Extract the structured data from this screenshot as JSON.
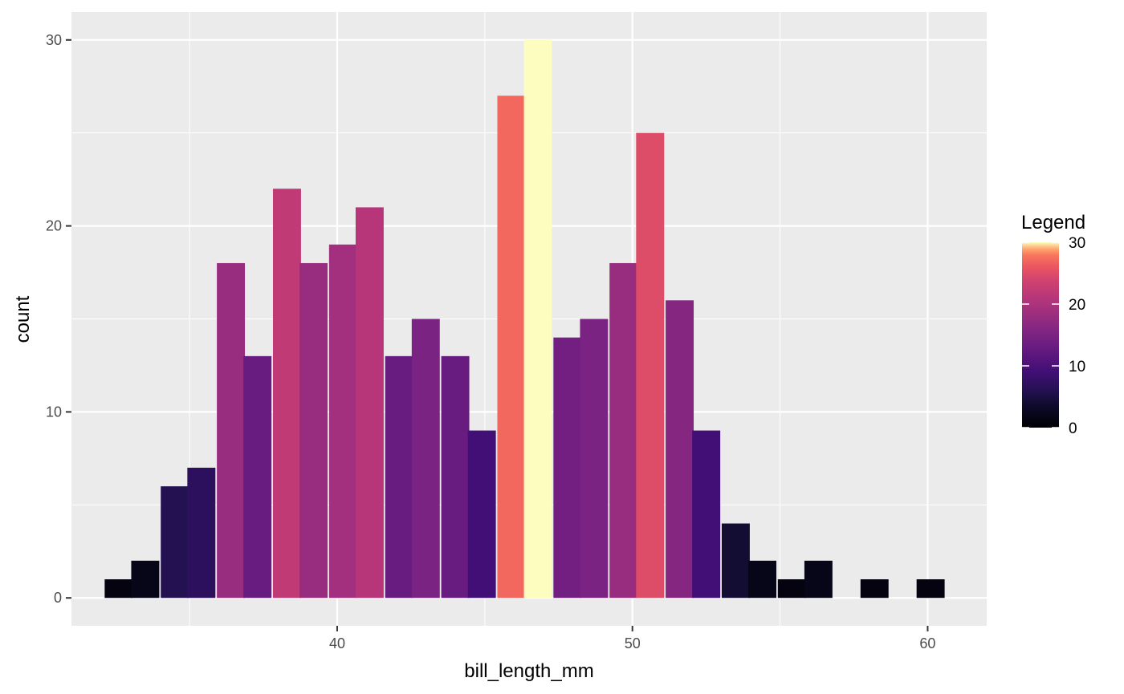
{
  "chart_data": {
    "type": "bar",
    "subtype": "histogram",
    "xlabel": "bill_length_mm",
    "ylabel": "count",
    "xlim": [
      31.0,
      62.0
    ],
    "ylim": [
      -1.5,
      31.5
    ],
    "xticks": [
      40,
      50,
      60
    ],
    "yticks": [
      0,
      10,
      20,
      30
    ],
    "grid": true,
    "bin_width": 0.95,
    "bins": [
      {
        "x": 32.6,
        "count": 1
      },
      {
        "x": 33.5,
        "count": 2
      },
      {
        "x": 34.5,
        "count": 6
      },
      {
        "x": 35.4,
        "count": 7
      },
      {
        "x": 36.4,
        "count": 18
      },
      {
        "x": 37.3,
        "count": 13
      },
      {
        "x": 38.3,
        "count": 22
      },
      {
        "x": 39.2,
        "count": 18
      },
      {
        "x": 40.2,
        "count": 19
      },
      {
        "x": 41.1,
        "count": 21
      },
      {
        "x": 42.1,
        "count": 13
      },
      {
        "x": 43.0,
        "count": 15
      },
      {
        "x": 44.0,
        "count": 13
      },
      {
        "x": 44.9,
        "count": 9
      },
      {
        "x": 45.9,
        "count": 27
      },
      {
        "x": 46.8,
        "count": 30
      },
      {
        "x": 47.8,
        "count": 14
      },
      {
        "x": 48.7,
        "count": 15
      },
      {
        "x": 49.7,
        "count": 18
      },
      {
        "x": 50.6,
        "count": 25
      },
      {
        "x": 51.6,
        "count": 16
      },
      {
        "x": 52.5,
        "count": 9
      },
      {
        "x": 53.5,
        "count": 4
      },
      {
        "x": 54.4,
        "count": 2
      },
      {
        "x": 55.4,
        "count": 1
      },
      {
        "x": 56.3,
        "count": 2
      },
      {
        "x": 57.3,
        "count": 0
      },
      {
        "x": 58.2,
        "count": 1
      },
      {
        "x": 59.2,
        "count": 0
      },
      {
        "x": 60.1,
        "count": 1
      }
    ],
    "legend": {
      "title": "Legend",
      "placement": "right",
      "labels": [
        "0",
        "10",
        "20",
        "30"
      ],
      "values": [
        0,
        10,
        20,
        30
      ],
      "colormap": "magma"
    }
  },
  "colors": {
    "panel_bg": "#ebebeb",
    "grid_major": "#ffffff",
    "tick_text": "#4d4d4d",
    "tick_mark": "#333333"
  }
}
